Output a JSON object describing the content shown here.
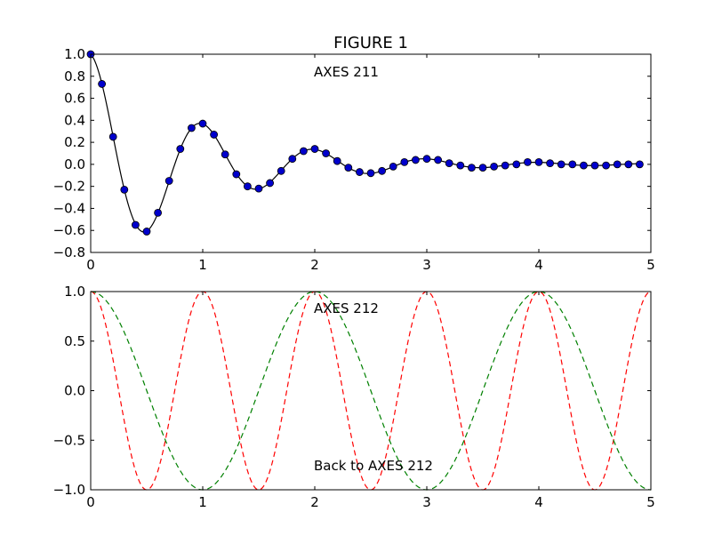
{
  "figure": {
    "title": "FIGURE 1"
  },
  "chart_data": [
    {
      "type": "line",
      "annotation": "AXES 211",
      "xlim": [
        0,
        5
      ],
      "ylim": [
        -0.8,
        1.0
      ],
      "xticks": [
        "0",
        "1",
        "2",
        "3",
        "4",
        "5"
      ],
      "yticks": [
        "−0.8",
        "−0.6",
        "−0.4",
        "−0.2",
        "0.0",
        "0.2",
        "0.4",
        "0.6",
        "0.8",
        "1.0"
      ],
      "grid": false,
      "series": [
        {
          "style": "solid line with circle markers",
          "line_color": "#000000",
          "marker_color": "#0000cc",
          "x": [
            0.0,
            0.1,
            0.2,
            0.3,
            0.4,
            0.5,
            0.6,
            0.7,
            0.8,
            0.9,
            1.0,
            1.1,
            1.2,
            1.3,
            1.4,
            1.5,
            1.6,
            1.7,
            1.8,
            1.9,
            2.0,
            2.1,
            2.2,
            2.3,
            2.4,
            2.5,
            2.6,
            2.7,
            2.8,
            2.9,
            3.0,
            3.1,
            3.2,
            3.3,
            3.4,
            3.5,
            3.6,
            3.7,
            3.8,
            3.9,
            4.0,
            4.1,
            4.2,
            4.3,
            4.4,
            4.5,
            4.6,
            4.7,
            4.8,
            4.9
          ],
          "y": [
            1.0,
            0.73,
            0.25,
            -0.23,
            -0.55,
            -0.61,
            -0.44,
            -0.15,
            0.14,
            0.33,
            0.37,
            0.27,
            0.09,
            -0.09,
            -0.2,
            -0.22,
            -0.17,
            -0.06,
            0.05,
            0.12,
            0.14,
            0.1,
            0.03,
            -0.03,
            -0.07,
            -0.08,
            -0.06,
            -0.02,
            0.02,
            0.04,
            0.05,
            0.04,
            0.01,
            -0.01,
            -0.03,
            -0.03,
            -0.02,
            -0.01,
            0.0,
            0.02,
            0.02,
            0.01,
            0.0,
            0.0,
            -0.01,
            -0.01,
            -0.01,
            0.0,
            0.0,
            0.0
          ]
        }
      ]
    },
    {
      "type": "line",
      "annotations": [
        "AXES 212",
        "Back to AXES 212"
      ],
      "xlim": [
        0,
        5
      ],
      "ylim": [
        -1.0,
        1.0
      ],
      "xticks": [
        "0",
        "1",
        "2",
        "3",
        "4",
        "5"
      ],
      "yticks": [
        "−1.0",
        "−0.5",
        "0.0",
        "0.5",
        "1.0"
      ],
      "grid": false,
      "series": [
        {
          "style": "dashed",
          "color": "#ff0000",
          "function": "cos(2*pi*x)",
          "x_range": [
            0,
            5
          ]
        },
        {
          "style": "dashed",
          "color": "#008000",
          "function": "cos(pi*x)",
          "x_range": [
            0,
            5
          ]
        }
      ]
    }
  ]
}
